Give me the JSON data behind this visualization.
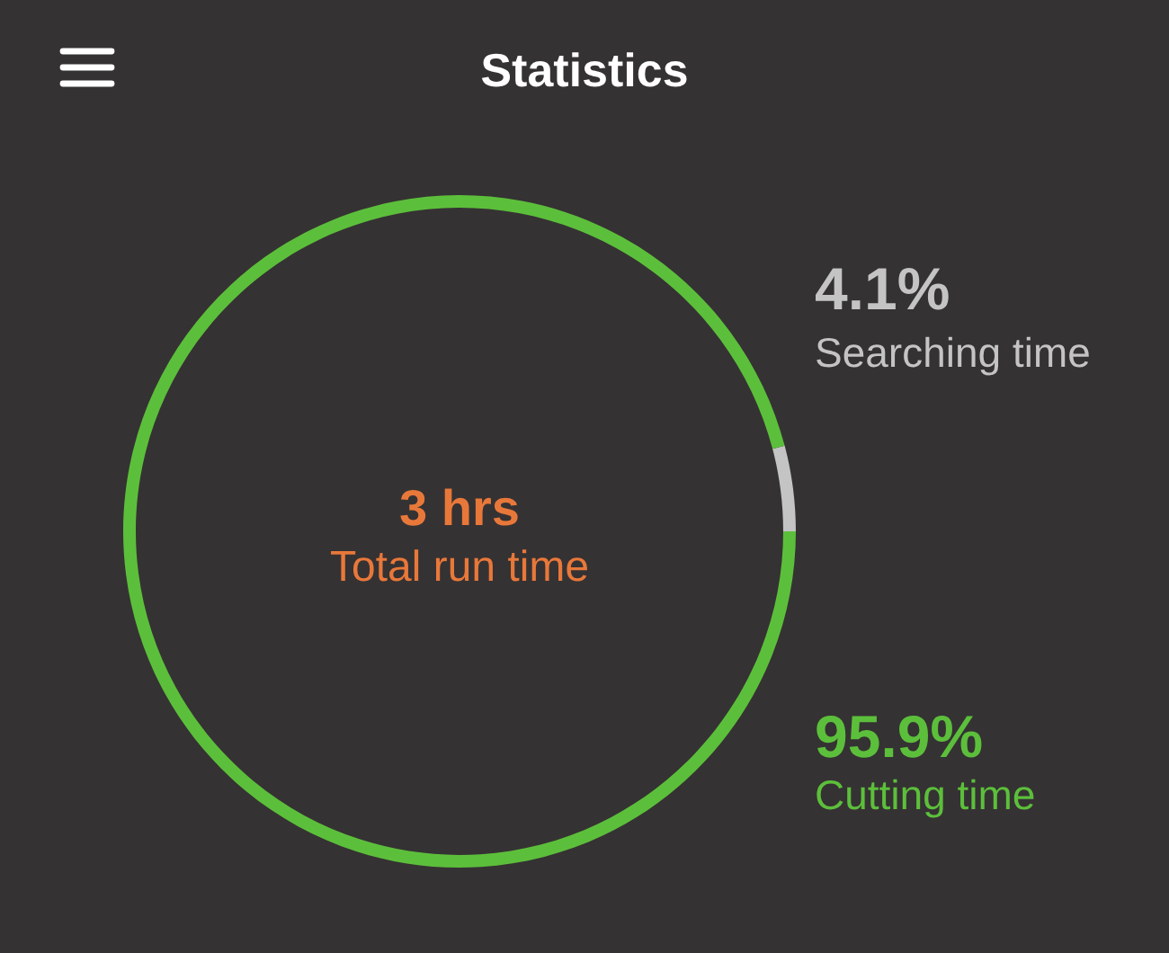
{
  "chart_data": {
    "type": "donut",
    "title": "Statistics",
    "categories": [
      "Searching time",
      "Cutting time"
    ],
    "values": [
      4.1,
      95.9
    ],
    "colors": [
      "#c4c4c4",
      "#5cbf3b"
    ],
    "value_labels": [
      "4.1%",
      "95.9%"
    ],
    "annotations": [
      "3 hrs",
      "Total run time"
    ]
  }
}
